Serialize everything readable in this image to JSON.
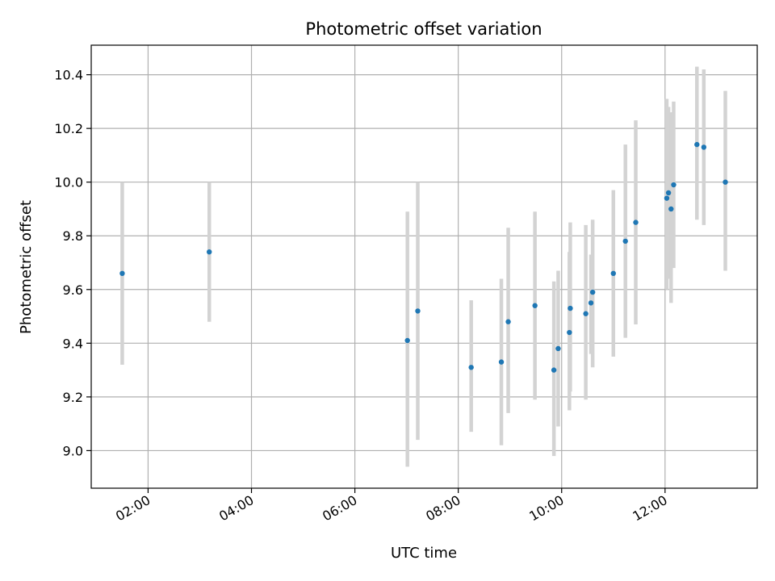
{
  "chart_data": {
    "type": "scatter",
    "title": "Photometric offset variation",
    "xlabel": "UTC time",
    "ylabel": "Photometric offset",
    "xlim": [
      "00:54",
      "13:47"
    ],
    "ylim": [
      8.86,
      10.51
    ],
    "grid": true,
    "x_ticks": [
      "02:00",
      "04:00",
      "06:00",
      "08:00",
      "10:00",
      "12:00"
    ],
    "y_ticks": [
      "9.0",
      "9.2",
      "9.4",
      "9.6",
      "9.8",
      "10.0",
      "10.2",
      "10.4"
    ],
    "marker_color": "#1f77b4",
    "errorbar_color": "#d3d3d3",
    "points": [
      {
        "time": "01:30",
        "value": 9.66,
        "low": 9.32,
        "high": 10.0
      },
      {
        "time": "03:11",
        "value": 9.74,
        "low": 9.48,
        "high": 10.0
      },
      {
        "time": "07:01",
        "value": 9.41,
        "low": 8.94,
        "high": 9.89
      },
      {
        "time": "07:13",
        "value": 9.52,
        "low": 9.04,
        "high": 10.0
      },
      {
        "time": "08:15",
        "value": 9.31,
        "low": 9.07,
        "high": 9.56
      },
      {
        "time": "08:50",
        "value": 9.33,
        "low": 9.02,
        "high": 9.64
      },
      {
        "time": "08:58",
        "value": 9.48,
        "low": 9.14,
        "high": 9.83
      },
      {
        "time": "09:29",
        "value": 9.54,
        "low": 9.19,
        "high": 9.89
      },
      {
        "time": "09:51",
        "value": 9.3,
        "low": 8.98,
        "high": 9.63
      },
      {
        "time": "09:56",
        "value": 9.38,
        "low": 9.09,
        "high": 9.67
      },
      {
        "time": "10:09",
        "value": 9.44,
        "low": 9.15,
        "high": 9.74
      },
      {
        "time": "10:10",
        "value": 9.53,
        "low": 9.22,
        "high": 9.85
      },
      {
        "time": "10:28",
        "value": 9.51,
        "low": 9.19,
        "high": 9.84
      },
      {
        "time": "10:34",
        "value": 9.55,
        "low": 9.36,
        "high": 9.73
      },
      {
        "time": "10:36",
        "value": 9.59,
        "low": 9.31,
        "high": 9.86
      },
      {
        "time": "11:00",
        "value": 9.66,
        "low": 9.35,
        "high": 9.97
      },
      {
        "time": "11:14",
        "value": 9.78,
        "low": 9.42,
        "high": 10.14
      },
      {
        "time": "11:26",
        "value": 9.85,
        "low": 9.47,
        "high": 10.23
      },
      {
        "time": "12:02",
        "value": 9.94,
        "low": 9.6,
        "high": 10.31
      },
      {
        "time": "12:04",
        "value": 9.96,
        "low": 9.64,
        "high": 10.28
      },
      {
        "time": "12:07",
        "value": 9.9,
        "low": 9.55,
        "high": 10.26
      },
      {
        "time": "12:10",
        "value": 9.99,
        "low": 9.68,
        "high": 10.3
      },
      {
        "time": "12:37",
        "value": 10.14,
        "low": 9.86,
        "high": 10.43
      },
      {
        "time": "12:45",
        "value": 10.13,
        "low": 9.84,
        "high": 10.42
      },
      {
        "time": "13:10",
        "value": 10.0,
        "low": 9.67,
        "high": 10.34
      }
    ]
  }
}
